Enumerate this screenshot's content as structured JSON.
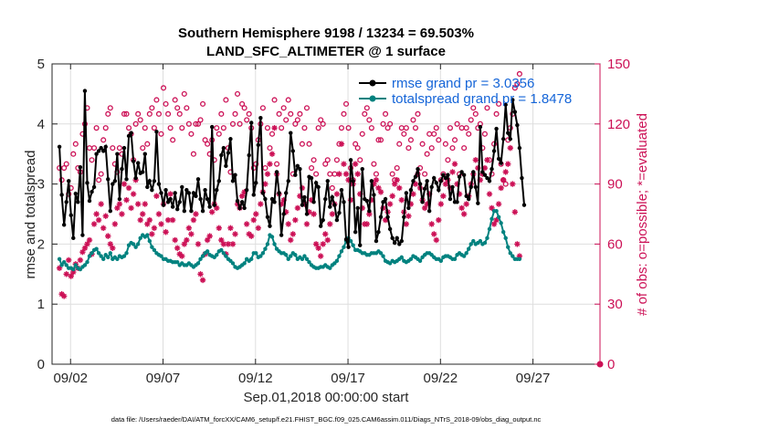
{
  "chart_data": {
    "type": "line",
    "title": "Southern Hemisphere 9198 / 13234 = 69.503%",
    "subtitle": "LAND_SFC_ALTIMETER @ 1 surface",
    "xlabel": "Sep.01,2018 00:00:00 start",
    "ylabel": "rmse and totalspread",
    "y2label": "# of obs: o=possible; *=evaluated",
    "footnote": "data file: /Users/raeder/DAI/ATM_forcXX/CAM6_setup/f.e21.FHIST_BGC.f09_025.CAM6assim.011/Diags_NTrS_2018-09/obs_diag_output.nc",
    "x_unit": "days since Sep.01,2018 00:00",
    "xlim": [
      0.5,
      30.125
    ],
    "ylim": [
      0,
      5
    ],
    "y2lim": [
      0,
      150
    ],
    "xticks": [
      1.5,
      6.5,
      11.5,
      16.5,
      21.5,
      26.5
    ],
    "xtick_labels": [
      "09/02",
      "09/07",
      "09/12",
      "09/17",
      "09/22",
      "09/27"
    ],
    "yticks": [
      0,
      1,
      2,
      3,
      4,
      5
    ],
    "y2ticks": [
      0,
      30,
      60,
      90,
      120,
      150
    ],
    "grid": true,
    "legend_position": "top-right",
    "colors": {
      "rmse": "#000000",
      "spread": "#00827f",
      "obs": "#cc1156",
      "legend_text": "#1565d8"
    },
    "series": [
      {
        "name": "rmse grand pr = 3.0356",
        "axis": "left",
        "color": "#000000",
        "marker": "filled-circle",
        "values": [
          3.62,
          2.82,
          2.32,
          2.7,
          3.05,
          2.48,
          2.1,
          2.84,
          2.7,
          3.28,
          2.15,
          4.55,
          3.02,
          2.72,
          2.87,
          2.95,
          3.5,
          3.55,
          3.6,
          3.55,
          3.62,
          3.08,
          2.55,
          3.0,
          3.05,
          3.5,
          2.75,
          3.25,
          3.6,
          3.08,
          3.8,
          3.85,
          3.38,
          3.1,
          3.35,
          3.18,
          3.2,
          3.5,
          2.95,
          3.05,
          2.9,
          3.05,
          3.87,
          3.0,
          2.85,
          2.65,
          2.9,
          2.7,
          2.75,
          2.62,
          2.85,
          2.58,
          2.7,
          2.95,
          2.55,
          2.9,
          2.85,
          2.55,
          2.85,
          2.8,
          3.08,
          2.75,
          2.55,
          2.9,
          2.75,
          2.62,
          3.95,
          2.65,
          2.9,
          3.05,
          3.48,
          3.6,
          3.3,
          3.52,
          3.75,
          3.05,
          3.15,
          2.72,
          2.6,
          2.7,
          2.6,
          2.9,
          3.48,
          4.02,
          2.82,
          3.02,
          3.65,
          4.1,
          2.85,
          2.75,
          2.45,
          2.3,
          2.75,
          2.7,
          3.2,
          2.85,
          2.15,
          2.5,
          2.85,
          3.05,
          3.85,
          3.55,
          3.15,
          3.3,
          3.25,
          2.65,
          2.78,
          2.5,
          3.12,
          3.1,
          2.7,
          3.02,
          2.95,
          2.3,
          2.4,
          2.75,
          3.05,
          2.62,
          2.78,
          2.65,
          2.4,
          2.52,
          2.9,
          2.7,
          2.08,
          1.95,
          3.4,
          3.05,
          2.2,
          2.6,
          1.98,
          3.25,
          2.75,
          2.72,
          2.55,
          3.05,
          2.82,
          2.05,
          2.2,
          2.45,
          2.7,
          2.75,
          2.45,
          2.25,
          2.1,
          2.02,
          2.1,
          2.0,
          2.05,
          2.45,
          2.85,
          2.6,
          2.9,
          3.05,
          3.12,
          3.25,
          3.0,
          2.7,
          2.92,
          3.05,
          2.55,
          2.95,
          3.1,
          3.02,
          2.9,
          3.05,
          3.15,
          3.1,
          3.15,
          2.75,
          2.95,
          2.7,
          2.7,
          3.12,
          3.2,
          3.15,
          2.8,
          2.75,
          2.95,
          3.2,
          2.95,
          2.68,
          3.95,
          3.2,
          3.15,
          3.1,
          3.05,
          3.25,
          3.55,
          3.92,
          3.42,
          3.35,
          3.75,
          4.32,
          3.85,
          3.75,
          4.4,
          4.2,
          3.98,
          3.6,
          3.1,
          2.65
        ]
      },
      {
        "name": "totalspread grand pr = 1.8478",
        "axis": "left",
        "color": "#00827f",
        "marker": "filled-circle",
        "values": [
          1.75,
          1.65,
          1.7,
          1.65,
          1.6,
          1.6,
          1.58,
          1.65,
          1.6,
          1.58,
          1.62,
          1.65,
          1.7,
          1.8,
          1.85,
          1.9,
          1.92,
          1.85,
          1.8,
          1.75,
          1.82,
          1.78,
          1.85,
          1.75,
          1.78,
          1.75,
          1.8,
          1.78,
          1.8,
          1.85,
          1.98,
          2.02,
          2.0,
          1.95,
          2.0,
          2.1,
          2.15,
          2.12,
          2.15,
          2.05,
          1.95,
          1.9,
          1.85,
          1.82,
          1.8,
          1.75,
          1.75,
          1.72,
          1.72,
          1.7,
          1.7,
          1.7,
          1.65,
          1.68,
          1.65,
          1.65,
          1.68,
          1.65,
          1.62,
          1.65,
          1.68,
          1.75,
          1.8,
          1.85,
          1.88,
          1.82,
          1.8,
          1.78,
          1.82,
          1.88,
          1.9,
          1.85,
          1.8,
          1.75,
          1.72,
          1.68,
          1.62,
          1.6,
          1.62,
          1.65,
          1.68,
          1.75,
          1.72,
          1.75,
          1.85,
          1.85,
          1.78,
          1.8,
          1.85,
          1.92,
          2.0,
          2.15,
          2.12,
          2.0,
          1.92,
          1.88,
          1.85,
          1.85,
          1.82,
          1.75,
          1.8,
          1.85,
          1.82,
          1.75,
          1.78,
          1.75,
          1.8,
          1.75,
          1.7,
          1.65,
          1.62,
          1.6,
          1.6,
          1.62,
          1.62,
          1.65,
          1.62,
          1.6,
          1.65,
          1.68,
          1.72,
          1.8,
          1.88,
          1.95,
          2.05,
          2.1,
          2.05,
          1.98,
          1.9,
          1.9,
          1.88,
          1.85,
          1.85,
          1.82,
          1.82,
          1.85,
          1.85,
          1.85,
          1.88,
          1.85,
          1.8,
          1.72,
          1.7,
          1.68,
          1.72,
          1.7,
          1.72,
          1.75,
          1.78,
          1.72,
          1.7,
          1.72,
          1.75,
          1.8,
          1.78,
          1.75,
          1.72,
          1.78,
          1.82,
          1.85,
          1.85,
          1.82,
          1.78,
          1.75,
          1.75,
          1.72,
          1.78,
          1.8,
          1.8,
          1.78,
          1.75,
          1.75,
          1.82,
          1.85,
          1.82,
          1.8,
          1.85,
          1.92,
          2.0,
          2.05,
          2.0,
          2.02,
          2.05,
          2.0,
          2.02,
          2.1,
          2.25,
          2.42,
          2.55,
          2.55,
          2.45,
          2.35,
          2.2,
          2.1,
          1.95,
          1.85,
          1.8,
          1.75,
          1.75,
          1.75
        ]
      },
      {
        "name": "possible",
        "axis": "right",
        "color": "#cc1156",
        "marker": "open-circle",
        "values": [
          98,
          92,
          98,
          100,
          85,
          88,
          105,
          110,
          98,
          96,
          115,
          120,
          128,
          108,
          102,
          108,
          118,
          92,
          95,
          112,
          118,
          125,
          128,
          108,
          100,
          96,
          108,
          105,
          125,
          125,
          118,
          115,
          102,
          120,
          125,
          122,
          108,
          118,
          110,
          125,
          128,
          118,
          132,
          125,
          115,
          138,
          130,
          125,
          118,
          112,
          132,
          128,
          125,
          118,
          135,
          128,
          120,
          115,
          105,
          120,
          120,
          122,
          130,
          112,
          110,
          105,
          112,
          102,
          118,
          115,
          125,
          118,
          132,
          108,
          96,
          120,
          125,
          135,
          120,
          130,
          128,
          122,
          125,
          118,
          98,
          100,
          112,
          120,
          128,
          98,
          118,
          108,
          115,
          132,
          100,
          125,
          118,
          128,
          122,
          132,
          125,
          95,
          120,
          122,
          125,
          110,
          118,
          128,
          110,
          98,
          102,
          95,
          118,
          122,
          120,
          100,
          102,
          95,
          88,
          95,
          102,
          110,
          118,
          125,
          130,
          118,
          98,
          92,
          110,
          108,
          102,
          115,
          125,
          128,
          122,
          118,
          100,
          95,
          112,
          112,
          120,
          125,
          118,
          120,
          95,
          92,
          98,
          110,
          118,
          115,
          118,
          108,
          112,
          122,
          118,
          125,
          98,
          110,
          95,
          105,
          115,
          108,
          115,
          118,
          112,
          92,
          95,
          110,
          102,
          118,
          108,
          112,
          120,
          95,
          118,
          108,
          118,
          115,
          122,
          128,
          125,
          118,
          120,
          108,
          115,
          128,
          102,
          95,
          110,
          125,
          130,
          100,
          92,
          90,
          112,
          118,
          125,
          138,
          140,
          145
        ]
      },
      {
        "name": "evaluated",
        "axis": "right",
        "color": "#cc1156",
        "marker": "asterisk",
        "values": [
          48,
          35,
          34,
          45,
          52,
          44,
          46,
          50,
          48,
          52,
          56,
          58,
          60,
          62,
          55,
          70,
          75,
          72,
          80,
          68,
          74,
          64,
          60,
          58,
          70,
          78,
          80,
          75,
          90,
          82,
          88,
          78,
          85,
          92,
          80,
          72,
          75,
          80,
          70,
          72,
          65,
          68,
          84,
          75,
          70,
          80,
          66,
          72,
          85,
          72,
          62,
          58,
          55,
          54,
          60,
          62,
          68,
          65,
          72,
          75,
          60,
          45,
          42,
          55,
          62,
          64,
          76,
          80,
          78,
          68,
          62,
          60,
          55,
          60,
          68,
          60,
          65,
          80,
          78,
          84,
          86,
          70,
          65,
          64,
          72,
          75,
          68,
          80,
          86,
          90,
          95,
          100,
          105,
          118,
          95,
          85,
          80,
          82,
          76,
          70,
          62,
          65,
          72,
          78,
          84,
          88,
          80,
          70,
          76,
          82,
          75,
          60,
          58,
          54,
          60,
          65,
          62,
          70,
          75,
          80,
          85,
          95,
          110,
          100,
          95,
          92,
          82,
          90,
          100,
          95,
          85,
          78,
          70,
          70,
          75,
          82,
          90,
          92,
          88,
          86,
          78,
          72,
          76,
          80,
          84,
          90,
          92,
          88,
          82,
          76,
          70,
          74,
          80,
          85,
          90,
          95,
          88,
          82,
          78,
          80,
          85,
          70,
          65,
          62,
          72,
          80,
          84,
          90,
          92,
          88,
          96,
          100,
          90,
          85,
          78,
          75,
          80,
          84,
          90,
          95,
          102,
          98,
          92,
          95,
          98,
          102,
          85,
          78,
          70,
          72,
          80,
          88,
          92,
          96,
          100,
          108,
          90,
          76,
          60,
          54
        ]
      }
    ]
  }
}
